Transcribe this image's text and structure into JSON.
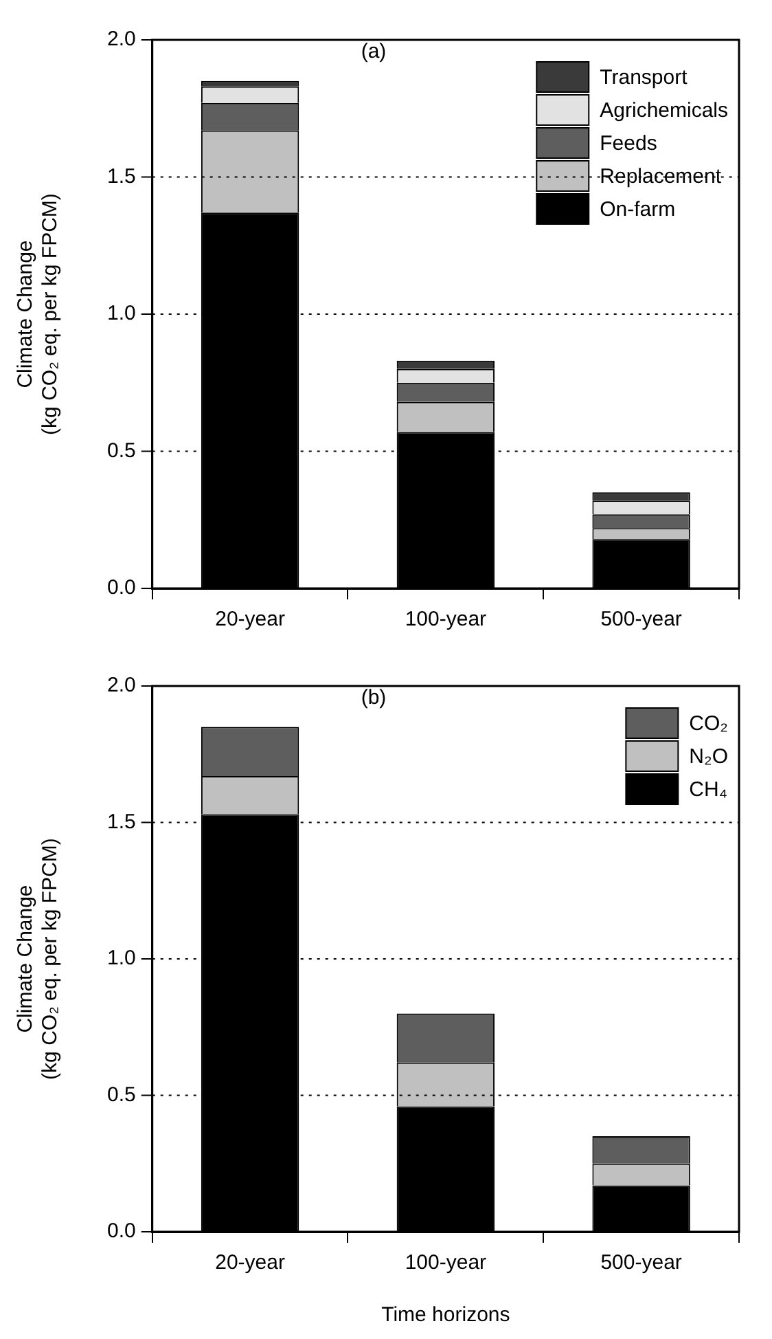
{
  "chart_data": [
    {
      "type": "bar",
      "title": "(a)",
      "ylabel": "Climate Change\n(kg CO₂ eq. per kg FPCM)",
      "categories": [
        "20-year",
        "100-year",
        "500-year"
      ],
      "stacked": true,
      "series": [
        {
          "name": "On-farm",
          "color": "#000000",
          "values": [
            1.37,
            0.57,
            0.18
          ]
        },
        {
          "name": "Replacement",
          "color": "#c0c0c0",
          "values": [
            0.3,
            0.11,
            0.04
          ]
        },
        {
          "name": "Feeds",
          "color": "#5e5e5e",
          "values": [
            0.1,
            0.07,
            0.05
          ]
        },
        {
          "name": "Agrichemicals",
          "color": "#e2e2e2",
          "values": [
            0.06,
            0.05,
            0.05
          ]
        },
        {
          "name": "Transport",
          "color": "#3a3a3a",
          "values": [
            0.02,
            0.03,
            0.03
          ]
        }
      ],
      "ylim": [
        0,
        2.0
      ],
      "yticks": [
        {
          "value": 0,
          "label": "0.0"
        },
        {
          "value": 0.5,
          "label": "0.5"
        },
        {
          "value": 1,
          "label": "1.0"
        },
        {
          "value": 1.5,
          "label": "1.5"
        },
        {
          "value": 2,
          "label": "2.0"
        }
      ],
      "grid": "y",
      "legend": "top right"
    },
    {
      "type": "bar",
      "title": "(b)",
      "xlabel": "Time horizons",
      "ylabel": "Climate Change\n(kg CO₂ eq. per kg FPCM)",
      "categories": [
        "20-year",
        "100-year",
        "500-year"
      ],
      "stacked": true,
      "series": [
        {
          "name": "CH₄",
          "color": "#000000",
          "values": [
            1.53,
            0.46,
            0.17
          ]
        },
        {
          "name": "N₂O",
          "color": "#c0c0c0",
          "values": [
            0.14,
            0.16,
            0.08
          ]
        },
        {
          "name": "CO₂",
          "color": "#5e5e5e",
          "values": [
            0.18,
            0.18,
            0.1
          ]
        }
      ],
      "ylim": [
        0,
        2.0
      ],
      "yticks": [
        {
          "value": 0,
          "label": "0.0"
        },
        {
          "value": 0.5,
          "label": "0.5"
        },
        {
          "value": 1,
          "label": "1.0"
        },
        {
          "value": 1.5,
          "label": "1.5"
        },
        {
          "value": 2,
          "label": "2.0"
        }
      ],
      "grid": "y",
      "legend": "top right"
    }
  ]
}
